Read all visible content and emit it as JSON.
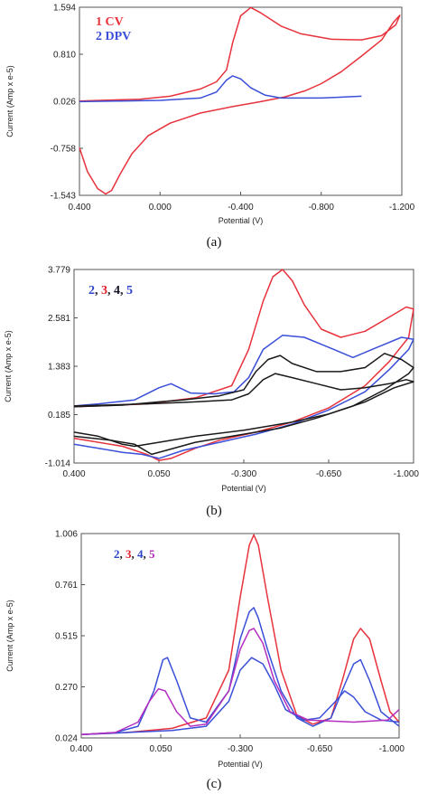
{
  "chart_data": [
    {
      "type": "line",
      "panel_label": "(a)",
      "xlabel": "Potential (V)",
      "ylabel": "Current (Amp x e-5)",
      "xlim": [
        0.4,
        -1.2
      ],
      "ylim": [
        -1.543,
        1.594
      ],
      "x_ticks": [
        "0.400",
        "0.000",
        "-0.400",
        "-0.800",
        "-1.200"
      ],
      "y_ticks": [
        "1.594",
        "0.810",
        "0.026",
        "-0.758",
        "-1.543"
      ],
      "legend": [
        {
          "text": "1 CV",
          "color": "#e8323c"
        },
        {
          "text": "2 DPV",
          "color": "#3a4fd8"
        }
      ],
      "series": [
        {
          "color": "#e8323c",
          "points": [
            [
              0.4,
              -0.75
            ],
            [
              0.36,
              -1.15
            ],
            [
              0.31,
              -1.43
            ],
            [
              0.27,
              -1.52
            ],
            [
              0.24,
              -1.46
            ],
            [
              0.2,
              -1.2
            ],
            [
              0.14,
              -0.85
            ],
            [
              0.06,
              -0.55
            ],
            [
              -0.05,
              -0.34
            ],
            [
              -0.2,
              -0.17
            ],
            [
              -0.35,
              -0.07
            ],
            [
              -0.5,
              0.02
            ],
            [
              -0.62,
              0.1
            ],
            [
              -0.72,
              0.2
            ],
            [
              -0.8,
              0.32
            ],
            [
              -0.9,
              0.52
            ],
            [
              -1.0,
              0.78
            ],
            [
              -1.1,
              1.05
            ],
            [
              -1.16,
              1.35
            ],
            [
              -1.19,
              1.46
            ],
            [
              -1.17,
              1.3
            ],
            [
              -1.1,
              1.12
            ],
            [
              -1.0,
              1.05
            ],
            [
              -0.85,
              1.06
            ],
            [
              -0.7,
              1.15
            ],
            [
              -0.6,
              1.28
            ],
            [
              -0.5,
              1.5
            ],
            [
              -0.45,
              1.59
            ],
            [
              -0.4,
              1.45
            ],
            [
              -0.36,
              1.0
            ],
            [
              -0.33,
              0.55
            ],
            [
              -0.28,
              0.35
            ],
            [
              -0.2,
              0.23
            ],
            [
              -0.05,
              0.11
            ],
            [
              0.1,
              0.06
            ],
            [
              0.3,
              0.04
            ],
            [
              0.4,
              0.03
            ]
          ]
        },
        {
          "color": "#3a4fd8",
          "points": [
            [
              0.4,
              0.02
            ],
            [
              0.2,
              0.03
            ],
            [
              0.0,
              0.04
            ],
            [
              -0.2,
              0.08
            ],
            [
              -0.28,
              0.18
            ],
            [
              -0.33,
              0.38
            ],
            [
              -0.36,
              0.45
            ],
            [
              -0.4,
              0.4
            ],
            [
              -0.45,
              0.25
            ],
            [
              -0.52,
              0.13
            ],
            [
              -0.6,
              0.08
            ],
            [
              -0.8,
              0.08
            ],
            [
              -1.0,
              0.11
            ]
          ]
        }
      ]
    },
    {
      "type": "line",
      "panel_label": "(b)",
      "xlabel": "Potential (V)",
      "ylabel": "Current (Amp x e-5)",
      "xlim": [
        0.4,
        -1.0
      ],
      "ylim": [
        -1.014,
        3.779
      ],
      "x_ticks": [
        "0.400",
        "0.050",
        "-0.300",
        "-0.650",
        "-1.000"
      ],
      "y_ticks": [
        "3.779",
        "2.581",
        "1.383",
        "0.185",
        "-1.014"
      ],
      "legend": [
        {
          "text": "2",
          "color": "#2b43c8"
        },
        {
          "text": "3",
          "color": "#e0202a"
        },
        {
          "text": "4",
          "color": "#14142a"
        },
        {
          "text": "5",
          "color": "#2b43c8"
        }
      ],
      "series": [
        {
          "color": "#e8323c",
          "points": [
            [
              0.4,
              -0.4
            ],
            [
              0.2,
              -0.6
            ],
            [
              0.1,
              -0.8
            ],
            [
              0.05,
              -0.95
            ],
            [
              0.0,
              -0.9
            ],
            [
              -0.1,
              -0.65
            ],
            [
              -0.2,
              -0.45
            ],
            [
              -0.35,
              -0.25
            ],
            [
              -0.5,
              0.0
            ],
            [
              -0.65,
              0.35
            ],
            [
              -0.8,
              0.9
            ],
            [
              -0.9,
              1.5
            ],
            [
              -0.98,
              2.1
            ],
            [
              -1.0,
              2.8
            ],
            [
              -0.97,
              2.85
            ],
            [
              -0.9,
              2.6
            ],
            [
              -0.8,
              2.25
            ],
            [
              -0.7,
              2.1
            ],
            [
              -0.62,
              2.3
            ],
            [
              -0.55,
              2.9
            ],
            [
              -0.5,
              3.5
            ],
            [
              -0.46,
              3.78
            ],
            [
              -0.42,
              3.6
            ],
            [
              -0.38,
              3.0
            ],
            [
              -0.32,
              1.8
            ],
            [
              -0.25,
              0.9
            ],
            [
              -0.1,
              0.6
            ],
            [
              0.1,
              0.45
            ],
            [
              0.3,
              0.4
            ],
            [
              0.4,
              0.38
            ]
          ]
        },
        {
          "color": "#3a4fd8",
          "points": [
            [
              0.4,
              -0.55
            ],
            [
              0.2,
              -0.75
            ],
            [
              0.12,
              -0.8
            ],
            [
              0.05,
              -0.9
            ],
            [
              -0.05,
              -0.7
            ],
            [
              -0.2,
              -0.5
            ],
            [
              -0.35,
              -0.3
            ],
            [
              -0.5,
              -0.05
            ],
            [
              -0.65,
              0.3
            ],
            [
              -0.8,
              0.75
            ],
            [
              -0.9,
              1.3
            ],
            [
              -0.98,
              1.8
            ],
            [
              -1.0,
              2.05
            ],
            [
              -0.95,
              2.1
            ],
            [
              -0.85,
              1.85
            ],
            [
              -0.75,
              1.6
            ],
            [
              -0.65,
              1.85
            ],
            [
              -0.55,
              2.1
            ],
            [
              -0.46,
              2.15
            ],
            [
              -0.38,
              1.8
            ],
            [
              -0.32,
              1.1
            ],
            [
              -0.26,
              0.75
            ],
            [
              -0.18,
              0.7
            ],
            [
              -0.08,
              0.72
            ],
            [
              0.0,
              0.95
            ],
            [
              0.05,
              0.85
            ],
            [
              0.15,
              0.55
            ],
            [
              0.3,
              0.45
            ],
            [
              0.4,
              0.4
            ]
          ]
        },
        {
          "color": "#1a1a1a",
          "points": [
            [
              0.4,
              -0.35
            ],
            [
              0.25,
              -0.45
            ],
            [
              0.15,
              -0.55
            ],
            [
              0.08,
              -0.8
            ],
            [
              0.02,
              -0.7
            ],
            [
              -0.1,
              -0.5
            ],
            [
              -0.25,
              -0.35
            ],
            [
              -0.45,
              -0.15
            ],
            [
              -0.6,
              0.1
            ],
            [
              -0.75,
              0.4
            ],
            [
              -0.88,
              0.8
            ],
            [
              -0.98,
              1.2
            ],
            [
              -1.0,
              1.35
            ],
            [
              -0.95,
              1.55
            ],
            [
              -0.88,
              1.7
            ],
            [
              -0.8,
              1.35
            ],
            [
              -0.7,
              1.25
            ],
            [
              -0.6,
              1.25
            ],
            [
              -0.5,
              1.45
            ],
            [
              -0.45,
              1.65
            ],
            [
              -0.4,
              1.55
            ],
            [
              -0.35,
              1.25
            ],
            [
              -0.3,
              0.8
            ],
            [
              -0.2,
              0.65
            ],
            [
              -0.05,
              0.55
            ],
            [
              0.05,
              0.5
            ],
            [
              0.2,
              0.42
            ],
            [
              0.4,
              0.38
            ]
          ]
        },
        {
          "color": "#1a1a1a",
          "points": [
            [
              0.4,
              -0.25
            ],
            [
              0.3,
              -0.35
            ],
            [
              0.2,
              -0.55
            ],
            [
              0.15,
              -0.6
            ],
            [
              0.05,
              -0.5
            ],
            [
              -0.1,
              -0.35
            ],
            [
              -0.3,
              -0.2
            ],
            [
              -0.5,
              0.0
            ],
            [
              -0.65,
              0.2
            ],
            [
              -0.8,
              0.5
            ],
            [
              -0.92,
              0.85
            ],
            [
              -1.0,
              1.0
            ],
            [
              -0.97,
              1.05
            ],
            [
              -0.9,
              0.95
            ],
            [
              -0.8,
              0.85
            ],
            [
              -0.7,
              0.8
            ],
            [
              -0.6,
              0.95
            ],
            [
              -0.5,
              1.1
            ],
            [
              -0.43,
              1.2
            ],
            [
              -0.38,
              1.05
            ],
            [
              -0.32,
              0.7
            ],
            [
              -0.25,
              0.55
            ],
            [
              -0.1,
              0.5
            ],
            [
              0.1,
              0.45
            ],
            [
              0.4,
              0.4
            ]
          ]
        }
      ]
    },
    {
      "type": "line",
      "panel_label": "(c)",
      "xlabel": "Potential (V)",
      "ylabel": "Current (Amp x e-5)",
      "xlim": [
        0.4,
        -1.0
      ],
      "ylim": [
        0.024,
        1.006
      ],
      "x_ticks": [
        "0.400",
        "0.050",
        "-0.300",
        "-0.650",
        "-1.000"
      ],
      "y_ticks": [
        "1.006",
        "0.761",
        "0.515",
        "0.270",
        "0.024"
      ],
      "legend": [
        {
          "text": "2",
          "color": "#2b43c8"
        },
        {
          "text": "3",
          "color": "#e0202a"
        },
        {
          "text": "4",
          "color": "#2b43c8"
        },
        {
          "text": "5",
          "color": "#b02cb8"
        }
      ],
      "series": [
        {
          "color": "#e8323c",
          "points": [
            [
              0.4,
              0.04
            ],
            [
              0.2,
              0.05
            ],
            [
              0.0,
              0.07
            ],
            [
              -0.15,
              0.12
            ],
            [
              -0.25,
              0.35
            ],
            [
              -0.3,
              0.7
            ],
            [
              -0.34,
              0.95
            ],
            [
              -0.36,
              1.0
            ],
            [
              -0.38,
              0.95
            ],
            [
              -0.42,
              0.7
            ],
            [
              -0.48,
              0.35
            ],
            [
              -0.55,
              0.13
            ],
            [
              -0.62,
              0.09
            ],
            [
              -0.7,
              0.12
            ],
            [
              -0.75,
              0.3
            ],
            [
              -0.8,
              0.5
            ],
            [
              -0.83,
              0.55
            ],
            [
              -0.87,
              0.5
            ],
            [
              -0.92,
              0.3
            ],
            [
              -0.96,
              0.15
            ],
            [
              -1.0,
              0.1
            ]
          ]
        },
        {
          "color": "#3a4fd8",
          "points": [
            [
              0.4,
              0.04
            ],
            [
              0.25,
              0.05
            ],
            [
              0.15,
              0.08
            ],
            [
              0.08,
              0.25
            ],
            [
              0.04,
              0.4
            ],
            [
              0.02,
              0.41
            ],
            [
              -0.02,
              0.3
            ],
            [
              -0.08,
              0.12
            ],
            [
              -0.15,
              0.1
            ],
            [
              -0.25,
              0.25
            ],
            [
              -0.3,
              0.5
            ],
            [
              -0.34,
              0.63
            ],
            [
              -0.36,
              0.65
            ],
            [
              -0.38,
              0.6
            ],
            [
              -0.42,
              0.45
            ],
            [
              -0.48,
              0.25
            ],
            [
              -0.55,
              0.12
            ],
            [
              -0.62,
              0.08
            ],
            [
              -0.7,
              0.12
            ],
            [
              -0.76,
              0.28
            ],
            [
              -0.8,
              0.38
            ],
            [
              -0.83,
              0.4
            ],
            [
              -0.87,
              0.3
            ],
            [
              -0.92,
              0.15
            ],
            [
              -1.0,
              0.08
            ]
          ]
        },
        {
          "color": "#3a4fd8",
          "points": [
            [
              0.4,
              0.04
            ],
            [
              0.2,
              0.05
            ],
            [
              0.0,
              0.06
            ],
            [
              -0.15,
              0.08
            ],
            [
              -0.25,
              0.2
            ],
            [
              -0.3,
              0.35
            ],
            [
              -0.35,
              0.41
            ],
            [
              -0.4,
              0.38
            ],
            [
              -0.45,
              0.28
            ],
            [
              -0.5,
              0.16
            ],
            [
              -0.58,
              0.11
            ],
            [
              -0.65,
              0.12
            ],
            [
              -0.72,
              0.2
            ],
            [
              -0.76,
              0.25
            ],
            [
              -0.8,
              0.22
            ],
            [
              -0.85,
              0.15
            ],
            [
              -0.92,
              0.11
            ],
            [
              -1.0,
              0.1
            ]
          ]
        },
        {
          "color": "#b42fbf",
          "points": [
            [
              0.4,
              0.04
            ],
            [
              0.25,
              0.05
            ],
            [
              0.15,
              0.1
            ],
            [
              0.1,
              0.2
            ],
            [
              0.06,
              0.26
            ],
            [
              0.03,
              0.25
            ],
            [
              -0.02,
              0.15
            ],
            [
              -0.08,
              0.08
            ],
            [
              -0.15,
              0.09
            ],
            [
              -0.25,
              0.25
            ],
            [
              -0.3,
              0.45
            ],
            [
              -0.34,
              0.54
            ],
            [
              -0.36,
              0.55
            ],
            [
              -0.4,
              0.48
            ],
            [
              -0.45,
              0.3
            ],
            [
              -0.52,
              0.15
            ],
            [
              -0.6,
              0.11
            ],
            [
              -0.8,
              0.1
            ],
            [
              -0.95,
              0.11
            ],
            [
              -1.0,
              0.16
            ]
          ]
        }
      ]
    }
  ]
}
